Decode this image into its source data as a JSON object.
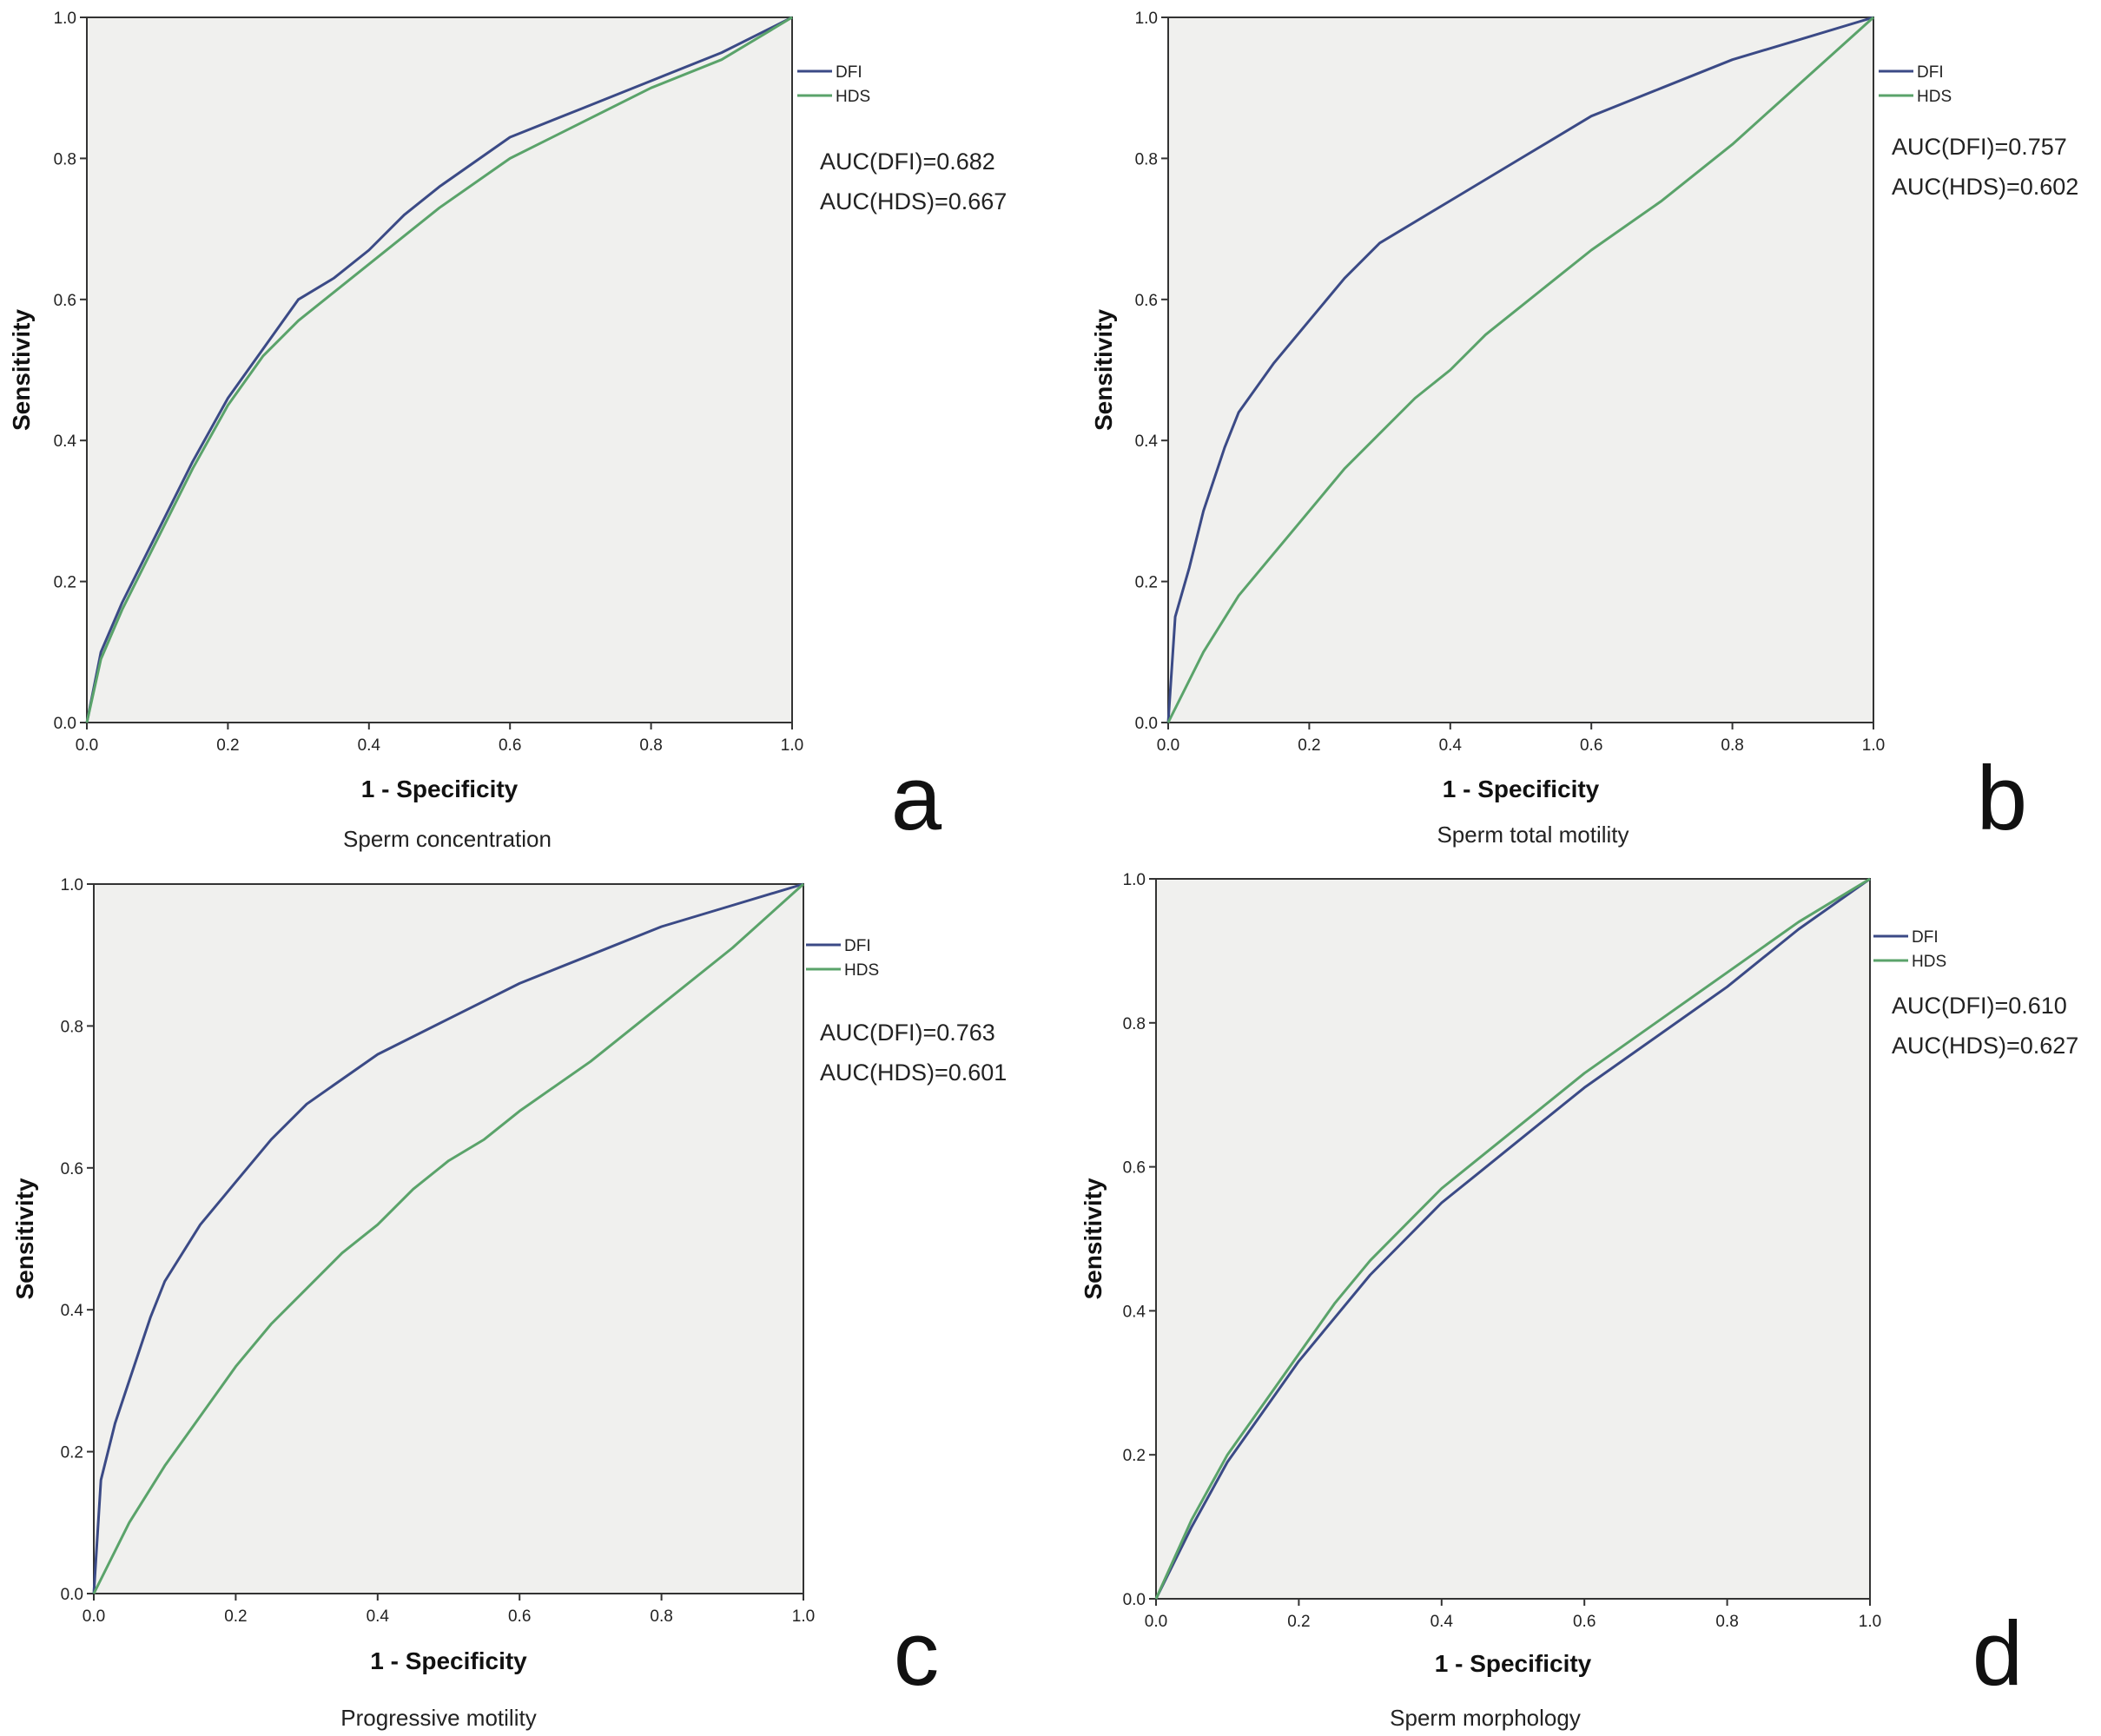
{
  "figure": {
    "description_colors": {
      "dfi": "#3b4a86",
      "hds": "#5aa36a",
      "plot_bg": "#f0f0ee",
      "axis": "#333333"
    }
  },
  "chart_data": [
    {
      "type": "line",
      "panel": "a",
      "caption": "Sperm concentration",
      "xlabel": "1 - Specificity",
      "ylabel": "Sensitivity",
      "xlim": [
        0,
        1
      ],
      "ylim": [
        0,
        1
      ],
      "x_ticks": [
        "0.0",
        "0.2",
        "0.4",
        "0.6",
        "0.8",
        "1.0"
      ],
      "y_ticks": [
        "0.0",
        "0.2",
        "0.4",
        "0.6",
        "0.8",
        "1.0"
      ],
      "legend": [
        "DFI",
        "HDS"
      ],
      "annotations": [
        "AUC(DFI)=0.682",
        "AUC(HDS)=0.667"
      ],
      "series": [
        {
          "name": "DFI",
          "color": "#3b4a86",
          "x": [
            0,
            0.02,
            0.05,
            0.1,
            0.15,
            0.2,
            0.25,
            0.3,
            0.35,
            0.4,
            0.45,
            0.5,
            0.6,
            0.7,
            0.8,
            0.9,
            1.0
          ],
          "y": [
            0,
            0.1,
            0.17,
            0.27,
            0.37,
            0.46,
            0.53,
            0.6,
            0.63,
            0.67,
            0.72,
            0.76,
            0.83,
            0.87,
            0.91,
            0.95,
            1.0
          ]
        },
        {
          "name": "HDS",
          "color": "#5aa36a",
          "x": [
            0,
            0.02,
            0.05,
            0.1,
            0.15,
            0.2,
            0.25,
            0.3,
            0.35,
            0.4,
            0.45,
            0.5,
            0.6,
            0.7,
            0.8,
            0.9,
            1.0
          ],
          "y": [
            0,
            0.09,
            0.16,
            0.26,
            0.36,
            0.45,
            0.52,
            0.57,
            0.61,
            0.65,
            0.69,
            0.73,
            0.8,
            0.85,
            0.9,
            0.94,
            1.0
          ]
        }
      ]
    },
    {
      "type": "line",
      "panel": "b",
      "caption": "Sperm total motility",
      "xlabel": "1 - Specificity",
      "ylabel": "Sensitivity",
      "xlim": [
        0,
        1
      ],
      "ylim": [
        0,
        1
      ],
      "x_ticks": [
        "0.0",
        "0.2",
        "0.4",
        "0.6",
        "0.8",
        "1.0"
      ],
      "y_ticks": [
        "0.0",
        "0.2",
        "0.4",
        "0.6",
        "0.8",
        "1.0"
      ],
      "legend": [
        "DFI",
        "HDS"
      ],
      "annotations": [
        "AUC(DFI)=0.757",
        "AUC(HDS)=0.602"
      ],
      "series": [
        {
          "name": "DFI",
          "color": "#3b4a86",
          "x": [
            0,
            0.01,
            0.03,
            0.05,
            0.08,
            0.1,
            0.15,
            0.2,
            0.25,
            0.3,
            0.4,
            0.5,
            0.6,
            0.7,
            0.8,
            0.9,
            1.0
          ],
          "y": [
            0,
            0.15,
            0.22,
            0.3,
            0.39,
            0.44,
            0.51,
            0.57,
            0.63,
            0.68,
            0.74,
            0.8,
            0.86,
            0.9,
            0.94,
            0.97,
            1.0
          ]
        },
        {
          "name": "HDS",
          "color": "#5aa36a",
          "x": [
            0,
            0.05,
            0.1,
            0.15,
            0.2,
            0.25,
            0.3,
            0.35,
            0.4,
            0.45,
            0.5,
            0.55,
            0.6,
            0.7,
            0.8,
            0.9,
            1.0
          ],
          "y": [
            0,
            0.1,
            0.18,
            0.24,
            0.3,
            0.36,
            0.41,
            0.46,
            0.5,
            0.55,
            0.59,
            0.63,
            0.67,
            0.74,
            0.82,
            0.91,
            1.0
          ]
        }
      ]
    },
    {
      "type": "line",
      "panel": "c",
      "caption": "Progressive motility",
      "xlabel": "1 - Specificity",
      "ylabel": "Sensitivity",
      "xlim": [
        0,
        1
      ],
      "ylim": [
        0,
        1
      ],
      "x_ticks": [
        "0.0",
        "0.2",
        "0.4",
        "0.6",
        "0.8",
        "1.0"
      ],
      "y_ticks": [
        "0.0",
        "0.2",
        "0.4",
        "0.6",
        "0.8",
        "1.0"
      ],
      "legend": [
        "DFI",
        "HDS"
      ],
      "annotations": [
        "AUC(DFI)=0.763",
        "AUC(HDS)=0.601"
      ],
      "series": [
        {
          "name": "DFI",
          "color": "#3b4a86",
          "x": [
            0,
            0.01,
            0.03,
            0.05,
            0.08,
            0.1,
            0.15,
            0.2,
            0.25,
            0.3,
            0.4,
            0.5,
            0.6,
            0.7,
            0.8,
            0.9,
            1.0
          ],
          "y": [
            0,
            0.16,
            0.24,
            0.3,
            0.39,
            0.44,
            0.52,
            0.58,
            0.64,
            0.69,
            0.76,
            0.81,
            0.86,
            0.9,
            0.94,
            0.97,
            1.0
          ]
        },
        {
          "name": "HDS",
          "color": "#5aa36a",
          "x": [
            0,
            0.05,
            0.1,
            0.15,
            0.2,
            0.25,
            0.3,
            0.35,
            0.4,
            0.45,
            0.5,
            0.55,
            0.6,
            0.7,
            0.8,
            0.9,
            1.0
          ],
          "y": [
            0,
            0.1,
            0.18,
            0.25,
            0.32,
            0.38,
            0.43,
            0.48,
            0.52,
            0.57,
            0.61,
            0.64,
            0.68,
            0.75,
            0.83,
            0.91,
            1.0
          ]
        }
      ]
    },
    {
      "type": "line",
      "panel": "d",
      "caption": "Sperm morphology",
      "xlabel": "1 - Specificity",
      "ylabel": "Sensitivity",
      "xlim": [
        0,
        1
      ],
      "ylim": [
        0,
        1
      ],
      "x_ticks": [
        "0.0",
        "0.2",
        "0.4",
        "0.6",
        "0.8",
        "1.0"
      ],
      "y_ticks": [
        "0.0",
        "0.2",
        "0.4",
        "0.6",
        "0.8",
        "1.0"
      ],
      "legend": [
        "DFI",
        "HDS"
      ],
      "annotations": [
        "AUC(DFI)=0.610",
        "AUC(HDS)=0.627"
      ],
      "series": [
        {
          "name": "DFI",
          "color": "#3b4a86",
          "x": [
            0,
            0.05,
            0.1,
            0.15,
            0.2,
            0.25,
            0.3,
            0.35,
            0.4,
            0.45,
            0.5,
            0.6,
            0.7,
            0.8,
            0.9,
            1.0
          ],
          "y": [
            0,
            0.1,
            0.19,
            0.26,
            0.33,
            0.39,
            0.45,
            0.5,
            0.55,
            0.59,
            0.63,
            0.71,
            0.78,
            0.85,
            0.93,
            1.0
          ]
        },
        {
          "name": "HDS",
          "color": "#5aa36a",
          "x": [
            0,
            0.05,
            0.1,
            0.15,
            0.2,
            0.25,
            0.3,
            0.35,
            0.4,
            0.45,
            0.5,
            0.6,
            0.7,
            0.8,
            0.9,
            1.0
          ],
          "y": [
            0,
            0.11,
            0.2,
            0.27,
            0.34,
            0.41,
            0.47,
            0.52,
            0.57,
            0.61,
            0.65,
            0.73,
            0.8,
            0.87,
            0.94,
            1.0
          ]
        }
      ]
    }
  ]
}
